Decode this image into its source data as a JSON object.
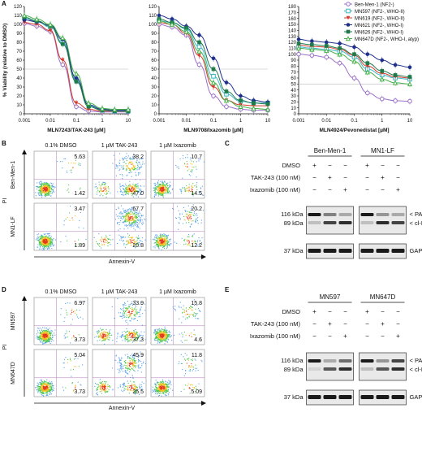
{
  "panel_letters": {
    "a": "A",
    "b": "B",
    "c": "C",
    "d": "D",
    "e": "E"
  },
  "colors": {
    "benmen1": "#9b6fc7",
    "mn597": "#3fb6c7",
    "mn619": "#d33a2c",
    "mn621": "#1f2f8c",
    "mn626": "#1f7a4a",
    "mn647d": "#45b04a",
    "flow_frame": "#888888",
    "blot_band": "#1a1a1a"
  },
  "legend": {
    "items": [
      {
        "label": "Ben-Men-1 (NF2-)",
        "marker": "open-circle",
        "color_key": "benmen1"
      },
      {
        "label": "MN597 (NF2-, WHO-II)",
        "marker": "open-square",
        "color_key": "mn597"
      },
      {
        "label": "MN619 (NF2-, WHO-II)",
        "marker": "down-triangle",
        "color_key": "mn619"
      },
      {
        "label": "MN621 (NF2-, WHO-I)",
        "marker": "filled-circle",
        "color_key": "mn621"
      },
      {
        "label": "MN626 (NF2-, WHO-I)",
        "marker": "filled-square",
        "color_key": "mn626"
      },
      {
        "label": "MN647D (NF2-, WHO-I, atyp)",
        "marker": "up-triangle",
        "color_key": "mn647d"
      }
    ]
  },
  "chart_data": [
    {
      "type": "line",
      "xlabel": "MLN7243/TAK-243 [µM]",
      "ylabel": "% Viability (relative to DMSO)",
      "x_scale": "log",
      "xlim": [
        0.001,
        10
      ],
      "ylim": [
        0,
        120
      ],
      "xticks": [
        "0.001",
        "0.01",
        "0.1",
        "1",
        "10"
      ],
      "yticks": [
        "0",
        "10",
        "20",
        "30",
        "40",
        "50",
        "60",
        "70",
        "80",
        "90",
        "100",
        "110",
        "120"
      ],
      "reference_line_y": 50,
      "x": [
        0.001,
        0.003,
        0.01,
        0.03,
        0.1,
        0.3,
        1,
        3,
        10
      ],
      "series": [
        {
          "name": "Ben-Men-1 (NF2-)",
          "values": [
            101,
            98,
            92,
            55,
            8,
            3,
            2,
            2,
            2
          ]
        },
        {
          "name": "MN597 (NF2-, WHO-II)",
          "values": [
            107,
            103,
            97,
            80,
            38,
            9,
            4,
            3,
            3
          ]
        },
        {
          "name": "MN619 (NF2-, WHO-II)",
          "values": [
            102,
            100,
            93,
            60,
            12,
            5,
            3,
            3,
            3
          ]
        },
        {
          "name": "MN621 (NF2-, WHO-I)",
          "values": [
            105,
            103,
            99,
            83,
            40,
            10,
            5,
            4,
            4
          ]
        },
        {
          "name": "MN626 (NF2-, WHO-I)",
          "values": [
            108,
            104,
            98,
            78,
            36,
            8,
            4,
            3,
            3
          ]
        },
        {
          "name": "MN647D (NF2-, WHO-I, atyp)",
          "values": [
            110,
            106,
            100,
            85,
            45,
            12,
            6,
            5,
            5
          ]
        }
      ]
    },
    {
      "type": "line",
      "xlabel": "MLN9708/Ixazomib [µM]",
      "x_scale": "log",
      "xlim": [
        0.001,
        10
      ],
      "ylim": [
        0,
        120
      ],
      "xticks": [
        "0.001",
        "0.01",
        "0.1",
        "1",
        "10"
      ],
      "yticks": [
        "0",
        "10",
        "20",
        "30",
        "40",
        "50",
        "60",
        "70",
        "80",
        "90",
        "100",
        "110",
        "120"
      ],
      "reference_line_y": 50,
      "x": [
        0.001,
        0.003,
        0.01,
        0.03,
        0.1,
        0.3,
        1,
        3,
        10
      ],
      "series": [
        {
          "name": "Ben-Men-1 (NF2-)",
          "values": [
            100,
            97,
            88,
            55,
            20,
            8,
            5,
            4,
            4
          ]
        },
        {
          "name": "MN597 (NF2-, WHO-II)",
          "values": [
            104,
            102,
            95,
            75,
            42,
            22,
            14,
            12,
            12
          ]
        },
        {
          "name": "MN619 (NF2-, WHO-II)",
          "values": [
            102,
            100,
            90,
            65,
            30,
            15,
            10,
            9,
            9
          ]
        },
        {
          "name": "MN621 (NF2-, WHO-I)",
          "values": [
            110,
            106,
            98,
            88,
            62,
            35,
            20,
            15,
            13
          ]
        },
        {
          "name": "MN626 (NF2-, WHO-I)",
          "values": [
            106,
            102,
            96,
            80,
            50,
            25,
            15,
            12,
            11
          ]
        },
        {
          "name": "MN647D (NF2-, WHO-I, atyp)",
          "values": [
            104,
            100,
            92,
            70,
            35,
            15,
            8,
            6,
            5
          ]
        }
      ]
    },
    {
      "type": "line",
      "xlabel": "MLN4924/Pevonedistat [µM]",
      "x_scale": "log",
      "xlim": [
        0.001,
        10
      ],
      "ylim": [
        0,
        180
      ],
      "xticks": [
        "0.001",
        "0.01",
        "0.1",
        "1",
        "10"
      ],
      "yticks": [
        "0",
        "10",
        "20",
        "30",
        "40",
        "50",
        "60",
        "70",
        "80",
        "90",
        "100",
        "110",
        "120",
        "130",
        "140",
        "150",
        "160",
        "170",
        "180"
      ],
      "reference_line_y": 50,
      "x": [
        0.001,
        0.003,
        0.01,
        0.03,
        0.1,
        0.3,
        1,
        3,
        10
      ],
      "series": [
        {
          "name": "Ben-Men-1 (NF2-)",
          "values": [
            100,
            98,
            95,
            85,
            60,
            35,
            25,
            22,
            21
          ]
        },
        {
          "name": "MN597 (NF2-, WHO-II)",
          "values": [
            112,
            110,
            108,
            105,
            95,
            75,
            65,
            60,
            58
          ]
        },
        {
          "name": "MN619 (NF2-, WHO-II)",
          "values": [
            115,
            113,
            112,
            108,
            98,
            80,
            68,
            62,
            60
          ]
        },
        {
          "name": "MN621 (NF2-, WHO-I)",
          "values": [
            125,
            122,
            120,
            118,
            112,
            100,
            90,
            82,
            78
          ]
        },
        {
          "name": "MN626 (NF2-, WHO-I)",
          "values": [
            118,
            116,
            114,
            110,
            100,
            85,
            72,
            65,
            62
          ]
        },
        {
          "name": "MN647D (NF2-, WHO-I, atyp)",
          "values": [
            110,
            108,
            106,
            100,
            88,
            70,
            58,
            52,
            50
          ]
        }
      ]
    }
  ],
  "flow_b": {
    "col_titles": [
      "0.1% DMSO",
      "1 µM TAK-243",
      "1 µM Ixazomib"
    ],
    "row_labels": [
      "Ben-Men-1",
      "MN1-LF"
    ],
    "y_axis": "PI",
    "x_axis": "Annexin-V",
    "quadrants": [
      [
        {
          "ur": "5.63",
          "lr": "1.42"
        },
        {
          "ur": "38.2",
          "lr": "47.0"
        },
        {
          "ur": "10.7",
          "lr": "14.5"
        }
      ],
      [
        {
          "ur": "3.47",
          "lr": "1.89"
        },
        {
          "ur": "67.7",
          "lr": "20.8"
        },
        {
          "ur": "20.2",
          "lr": "12.2"
        }
      ]
    ]
  },
  "flow_d": {
    "col_titles": [
      "0.1% DMSO",
      "1 µM TAK-243",
      "1 µM Ixazomib"
    ],
    "row_labels": [
      "MN597",
      "MN647D"
    ],
    "y_axis": "PI",
    "x_axis": "Annexin-V",
    "quadrants": [
      [
        {
          "ur": "6.97",
          "lr": "3.73"
        },
        {
          "ur": "33.9",
          "lr": "37.3"
        },
        {
          "ur": "15.8",
          "lr": "4.6"
        }
      ],
      [
        {
          "ur": "5.04",
          "lr": "3.73"
        },
        {
          "ur": "45.9",
          "lr": "25.5"
        },
        {
          "ur": "11.8",
          "lr": "5.09"
        }
      ]
    ]
  },
  "blot_c": {
    "cell_lines": [
      "Ben-Men-1",
      "MN1-LF"
    ],
    "rows": [
      "DMSO",
      "TAK-243 (100 nM)",
      "Ixazomib (100 nM)"
    ],
    "marks": [
      [
        "+",
        "−",
        "−",
        "+",
        "−",
        "−"
      ],
      [
        "−",
        "+",
        "−",
        "−",
        "+",
        "−"
      ],
      [
        "−",
        "−",
        "+",
        "−",
        "−",
        "+"
      ]
    ],
    "kda_top": [
      "116 kDa",
      "89 kDa"
    ],
    "kda_bottom": "37 kDa",
    "right_top": [
      "< PARP",
      "< cl-PARP"
    ],
    "right_bottom": "GAPDH"
  },
  "blot_e": {
    "cell_lines": [
      "MN597",
      "MN647D"
    ],
    "rows": [
      "DMSO",
      "TAK-243 (100 nM)",
      "Ixazomib (100 nM)"
    ],
    "marks": [
      [
        "+",
        "−",
        "−",
        "+",
        "−",
        "−"
      ],
      [
        "−",
        "+",
        "−",
        "−",
        "+",
        "−"
      ],
      [
        "−",
        "−",
        "+",
        "−",
        "−",
        "+"
      ]
    ],
    "kda_top": [
      "116 kDa",
      "89 kDa"
    ],
    "kda_bottom": "37 kDa",
    "right_top": [
      "< PARP",
      "< cl-PARP"
    ],
    "right_bottom": "GAPDH"
  }
}
